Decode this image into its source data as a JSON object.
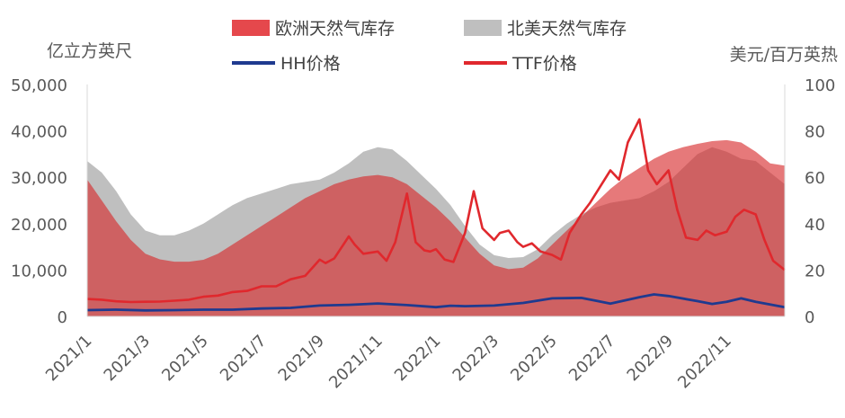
{
  "chart_data": {
    "type": "area",
    "y_left_unit": "亿立方英尺",
    "y_right_unit": "美元/百万英热",
    "y_left_ticks": [
      "0",
      "10,000",
      "20,000",
      "30,000",
      "40,000",
      "50,000"
    ],
    "y_right_ticks": [
      "0",
      "20",
      "40",
      "60",
      "80",
      "100"
    ],
    "ylim_left": [
      0,
      50000
    ],
    "ylim_right": [
      0,
      100
    ],
    "x_tick_labels": [
      "2021/1",
      "2021/3",
      "2021/5",
      "2021/7",
      "2021/9",
      "2021/11",
      "2022/1",
      "2022/3",
      "2022/5",
      "2022/7",
      "2022/9",
      "2022/11"
    ],
    "x_ticks_month_index": [
      0,
      2,
      4,
      6,
      8,
      10,
      12,
      14,
      16,
      18,
      20,
      22
    ],
    "x_range_month_index": [
      0,
      24
    ],
    "grid": false,
    "series": [
      {
        "name": "欧洲天然气库存",
        "kind": "area",
        "axis": "left",
        "color": "#d62728",
        "x": [
          0,
          0.5,
          1,
          1.5,
          2,
          2.5,
          3,
          3.5,
          4,
          4.5,
          5,
          5.5,
          6,
          6.5,
          7,
          7.5,
          8,
          8.5,
          9,
          9.5,
          10,
          10.5,
          11,
          11.5,
          12,
          12.5,
          13,
          13.5,
          14,
          14.5,
          15,
          15.5,
          16,
          16.5,
          17,
          17.5,
          18,
          18.5,
          19,
          19.5,
          20,
          20.5,
          21,
          21.5,
          22,
          22.5,
          23,
          23.5,
          24
        ],
        "values": [
          29500,
          25000,
          20500,
          16500,
          13500,
          12300,
          11800,
          11800,
          12200,
          13500,
          15500,
          17500,
          19500,
          21500,
          23500,
          25500,
          27000,
          28500,
          29500,
          30200,
          30500,
          30000,
          28500,
          26000,
          23500,
          20500,
          17000,
          13500,
          11000,
          10200,
          10500,
          12500,
          15500,
          18500,
          21500,
          24500,
          27500,
          30000,
          32000,
          34000,
          35500,
          36500,
          37200,
          37800,
          38000,
          37500,
          35500,
          33000,
          32500
        ]
      },
      {
        "name": "北美天然气库存",
        "kind": "area",
        "axis": "left",
        "color": "#bfbfbf",
        "x": [
          0,
          0.5,
          1,
          1.5,
          2,
          2.5,
          3,
          3.5,
          4,
          4.5,
          5,
          5.5,
          6,
          6.5,
          7,
          7.5,
          8,
          8.5,
          9,
          9.5,
          10,
          10.5,
          11,
          11.5,
          12,
          12.5,
          13,
          13.5,
          14,
          14.5,
          15,
          15.5,
          16,
          16.5,
          17,
          17.5,
          18,
          18.5,
          19,
          19.5,
          20,
          20.5,
          21,
          21.5,
          22,
          22.5,
          23,
          23.5,
          24
        ],
        "values": [
          33500,
          31000,
          27000,
          22000,
          18500,
          17500,
          17500,
          18500,
          20000,
          22000,
          24000,
          25500,
          26500,
          27500,
          28500,
          29000,
          29500,
          31000,
          33000,
          35500,
          36500,
          36000,
          33500,
          30500,
          27500,
          24000,
          19500,
          15500,
          13200,
          12600,
          12800,
          14500,
          17500,
          20000,
          22000,
          23500,
          24500,
          25000,
          25500,
          27000,
          29000,
          32000,
          35000,
          36500,
          35500,
          34000,
          33500,
          31000,
          28500
        ]
      },
      {
        "name": "HH价格",
        "kind": "line",
        "axis": "right",
        "color": "#1f3a8f",
        "x": [
          0,
          1,
          2,
          3,
          4,
          5,
          6,
          7,
          8,
          9,
          10,
          11,
          12,
          12.5,
          13,
          14,
          15,
          16,
          17,
          17.5,
          18,
          19,
          19.5,
          20,
          21,
          21.5,
          22,
          22.5,
          23,
          23.5,
          24
        ],
        "values": [
          2.7,
          2.9,
          2.6,
          2.7,
          2.9,
          2.9,
          3.4,
          3.7,
          4.7,
          5.0,
          5.6,
          4.9,
          4.0,
          4.6,
          4.4,
          4.7,
          5.8,
          7.8,
          8.0,
          6.8,
          5.5,
          8.3,
          9.5,
          8.8,
          6.6,
          5.4,
          6.3,
          7.8,
          6.3,
          5.1,
          4.0
        ]
      },
      {
        "name": "TTF价格",
        "kind": "line",
        "axis": "right",
        "color": "#e0282d",
        "x": [
          0,
          0.5,
          1,
          1.5,
          2,
          2.5,
          3,
          3.5,
          4,
          4.5,
          5,
          5.5,
          6,
          6.5,
          7,
          7.5,
          8,
          8.2,
          8.5,
          9,
          9.2,
          9.5,
          10,
          10.3,
          10.6,
          11,
          11.3,
          11.6,
          11.8,
          12,
          12.3,
          12.6,
          13,
          13.3,
          13.6,
          14,
          14.2,
          14.5,
          14.8,
          15,
          15.3,
          15.6,
          16,
          16.3,
          16.6,
          17,
          17.3,
          17.6,
          18,
          18.3,
          18.6,
          19,
          19.3,
          19.6,
          20,
          20.3,
          20.6,
          21,
          21.3,
          21.6,
          22,
          22.3,
          22.6,
          23,
          23.3,
          23.6,
          24
        ],
        "values": [
          7.5,
          7.2,
          6.5,
          6.2,
          6.3,
          6.4,
          6.8,
          7.2,
          8.5,
          9.0,
          10.5,
          11.0,
          13.0,
          13.0,
          16.0,
          17.5,
          24.5,
          23.0,
          25.0,
          34.5,
          31.0,
          27.0,
          28.0,
          24.0,
          32.0,
          53.0,
          32.0,
          28.5,
          28.0,
          29.0,
          24.5,
          23.5,
          36.0,
          54.0,
          38.0,
          33.0,
          36.0,
          37.0,
          32.0,
          30.0,
          31.5,
          28.0,
          26.5,
          24.5,
          36.0,
          44.0,
          49.0,
          55.0,
          63.0,
          59.0,
          75.0,
          85.0,
          63.0,
          57.0,
          63.0,
          46.0,
          34.0,
          33.0,
          37.0,
          35.0,
          36.5,
          43.0,
          46.0,
          44.0,
          33.0,
          24.0,
          20.0
        ]
      }
    ]
  }
}
